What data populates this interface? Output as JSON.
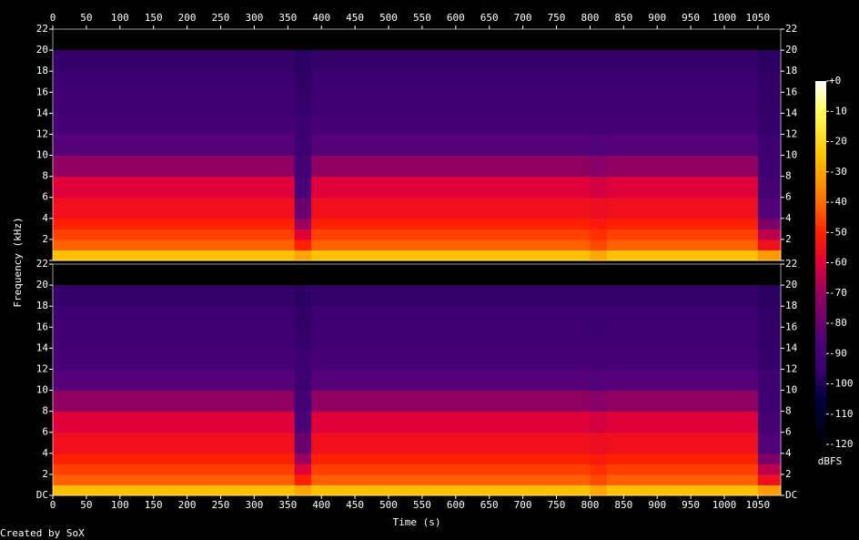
{
  "chart_data": {
    "type": "spectrogram",
    "y_label": "Frequency (kHz)",
    "x_label": "Time (s)",
    "colorbar_label": "dBFS",
    "footer": "Created by SoX",
    "xlim": [
      0,
      1084
    ],
    "xticks": [
      0,
      50,
      100,
      150,
      200,
      250,
      300,
      350,
      400,
      450,
      500,
      550,
      600,
      650,
      700,
      750,
      800,
      850,
      900,
      950,
      1000,
      1050
    ],
    "ylim": [
      0,
      22
    ],
    "yticks": [
      {
        "value": 0,
        "label": "DC"
      },
      2,
      4,
      6,
      8,
      10,
      12,
      14,
      16,
      18,
      20,
      22
    ],
    "clim": [
      -120,
      0
    ],
    "cticks": [
      {
        "value": 0,
        "label": "+0"
      },
      -10,
      -20,
      -30,
      -40,
      -50,
      -60,
      -70,
      -80,
      -90,
      -100,
      -110,
      -120
    ],
    "time_edges": [
      0,
      360,
      385,
      800,
      825,
      1050,
      1084
    ],
    "freq_edges": [
      0,
      1,
      2,
      3,
      4,
      6,
      8,
      10,
      12,
      14,
      16,
      18,
      20,
      22
    ],
    "dbfs": [
      [
        -25,
        -42,
        -46,
        -50,
        -55,
        -60,
        -72,
        -84,
        -90,
        -93,
        -95,
        -96,
        null
      ],
      [
        -30,
        -50,
        -60,
        -70,
        -80,
        -88,
        -92,
        -94,
        -95,
        -96,
        -97,
        -98,
        null
      ],
      [
        -25,
        -42,
        -46,
        -50,
        -55,
        -60,
        -72,
        -84,
        -90,
        -93,
        -95,
        -96,
        null
      ],
      [
        -30,
        -45,
        -48,
        -52,
        -56,
        -62,
        -74,
        -85,
        -91,
        -94,
        -95,
        -96,
        null
      ],
      [
        -25,
        -42,
        -46,
        -50,
        -55,
        -60,
        -72,
        -84,
        -90,
        -93,
        -95,
        -96,
        null
      ],
      [
        -32,
        -55,
        -65,
        -76,
        -85,
        -91,
        -94,
        -95,
        -96,
        -97,
        -97,
        -98,
        null
      ]
    ]
  }
}
